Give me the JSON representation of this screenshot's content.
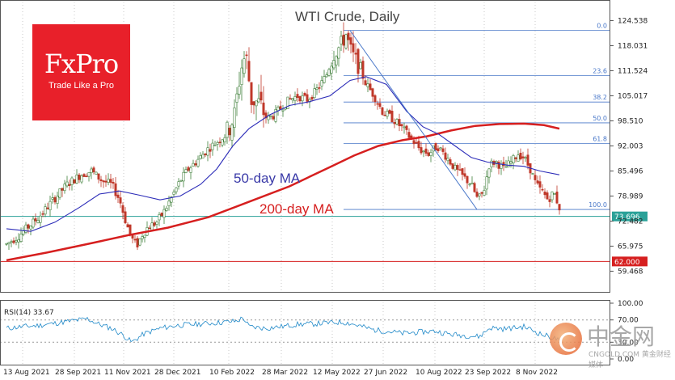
{
  "chart_data": {
    "type": "candlestick",
    "title": "WTI Crude, Daily",
    "y_ticks": [
      "124.538",
      "118.031",
      "111.524",
      "105.017",
      "98.510",
      "92.003",
      "85.496",
      "78.989",
      "72.482",
      "65.975",
      "59.468"
    ],
    "ylim": [
      56.2,
      127.8
    ],
    "x_ticks": [
      "13 Aug 2021",
      "28 Sep 2021",
      "11 Nov 2021",
      "28 Dec 2021",
      "10 Feb 2022",
      "28 Mar 2022",
      "12 May 2022",
      "27 Jun 2022",
      "10 Aug 2022",
      "23 Sep 2022",
      "8 Nov 2022"
    ],
    "price_path": [
      [
        0,
        66.5
      ],
      [
        14,
        68.5
      ],
      [
        27,
        71
      ],
      [
        40,
        73.5
      ],
      [
        58,
        78
      ],
      [
        75,
        82
      ],
      [
        92,
        84.5
      ],
      [
        105,
        85.5
      ],
      [
        118,
        83
      ],
      [
        130,
        82
      ],
      [
        140,
        78
      ],
      [
        148,
        72
      ],
      [
        155,
        68
      ],
      [
        161,
        66
      ],
      [
        168,
        69
      ],
      [
        175,
        71
      ],
      [
        185,
        72
      ],
      [
        195,
        75
      ],
      [
        205,
        79
      ],
      [
        215,
        83
      ],
      [
        225,
        86
      ],
      [
        235,
        88
      ],
      [
        248,
        91
      ],
      [
        260,
        93
      ],
      [
        272,
        95
      ],
      [
        282,
        100
      ],
      [
        290,
        112
      ],
      [
        296,
        116
      ],
      [
        303,
        104
      ],
      [
        313,
        103
      ],
      [
        322,
        99
      ],
      [
        331,
        100
      ],
      [
        340,
        102
      ],
      [
        350,
        104
      ],
      [
        360,
        105
      ],
      [
        372,
        104
      ],
      [
        382,
        106
      ],
      [
        395,
        110
      ],
      [
        405,
        116
      ],
      [
        413,
        118
      ],
      [
        420,
        121
      ],
      [
        427,
        116
      ],
      [
        435,
        113
      ],
      [
        445,
        108
      ],
      [
        455,
        105
      ],
      [
        465,
        101
      ],
      [
        478,
        99
      ],
      [
        488,
        97
      ],
      [
        500,
        94
      ],
      [
        512,
        91
      ],
      [
        522,
        90
      ],
      [
        533,
        92
      ],
      [
        545,
        89
      ],
      [
        555,
        86
      ],
      [
        565,
        84
      ],
      [
        575,
        82
      ],
      [
        583,
        78
      ],
      [
        590,
        80
      ],
      [
        597,
        87
      ],
      [
        605,
        88
      ],
      [
        615,
        86
      ],
      [
        625,
        88
      ],
      [
        633,
        90
      ],
      [
        640,
        89
      ],
      [
        648,
        86
      ],
      [
        655,
        82
      ],
      [
        663,
        80
      ],
      [
        670,
        78
      ],
      [
        677,
        80
      ],
      [
        684,
        76
      ]
    ],
    "ma50": {
      "name": "50-day MA",
      "color": "#2c2cb8",
      "points": [
        [
          0,
          70.5
        ],
        [
          30,
          69.8
        ],
        [
          60,
          72.2
        ],
        [
          90,
          76
        ],
        [
          115,
          79.5
        ],
        [
          140,
          80.3
        ],
        [
          165,
          79.2
        ],
        [
          190,
          78
        ],
        [
          215,
          79
        ],
        [
          240,
          82
        ],
        [
          260,
          86
        ],
        [
          280,
          92
        ],
        [
          300,
          96.5
        ],
        [
          325,
          100
        ],
        [
          350,
          102.5
        ],
        [
          375,
          103.5
        ],
        [
          400,
          105
        ],
        [
          425,
          109
        ],
        [
          445,
          110
        ],
        [
          470,
          108
        ],
        [
          495,
          101
        ],
        [
          515,
          97
        ],
        [
          535,
          95
        ],
        [
          555,
          92
        ],
        [
          575,
          89
        ],
        [
          595,
          87.8
        ],
        [
          620,
          87
        ],
        [
          640,
          86.7
        ],
        [
          660,
          85.5
        ],
        [
          684,
          84.5
        ]
      ]
    },
    "ma200": {
      "name": "200-day MA",
      "color": "#d61f1f",
      "points": [
        [
          0,
          62.3
        ],
        [
          50,
          64.3
        ],
        [
          100,
          66.5
        ],
        [
          150,
          68.8
        ],
        [
          200,
          70.8
        ],
        [
          250,
          73.5
        ],
        [
          300,
          77.5
        ],
        [
          350,
          81.5
        ],
        [
          400,
          86.5
        ],
        [
          430,
          89.5
        ],
        [
          460,
          92
        ],
        [
          490,
          93.5
        ],
        [
          520,
          94.5
        ],
        [
          550,
          96
        ],
        [
          580,
          97.2
        ],
        [
          610,
          97.7
        ],
        [
          640,
          97.8
        ],
        [
          665,
          97.4
        ],
        [
          684,
          96.5
        ]
      ]
    },
    "fibonacci": {
      "levels": [
        {
          "label": "0.0",
          "value": 122
        },
        {
          "label": "23.6",
          "value": 110.3
        },
        {
          "label": "38.2",
          "value": 103.4
        },
        {
          "label": "50.0",
          "value": 98
        },
        {
          "label": "61.8",
          "value": 92.6
        },
        {
          "label": "100.0",
          "value": 75.5
        }
      ]
    },
    "trend_line": {
      "from": [
        425,
        122
      ],
      "to": [
        582,
        75.5
      ]
    },
    "horizontal_lines": [
      {
        "label": "73.696",
        "value": 73.696,
        "color": "#2aa198"
      },
      {
        "label": "62.000",
        "value": 62.0,
        "color": "#d61f1f"
      }
    ],
    "rsi": {
      "label": "RSI(14) 33.67",
      "ticks": [
        "100.00",
        "70.00",
        "30.00",
        "0.00"
      ],
      "ylim": [
        0,
        100
      ],
      "path": [
        [
          0,
          55
        ],
        [
          20,
          58
        ],
        [
          40,
          60
        ],
        [
          60,
          64
        ],
        [
          80,
          68
        ],
        [
          100,
          72
        ],
        [
          115,
          62
        ],
        [
          130,
          55
        ],
        [
          145,
          42
        ],
        [
          155,
          30
        ],
        [
          170,
          45
        ],
        [
          190,
          55
        ],
        [
          210,
          60
        ],
        [
          230,
          62
        ],
        [
          250,
          64
        ],
        [
          270,
          66
        ],
        [
          285,
          68
        ],
        [
          293,
          74
        ],
        [
          300,
          58
        ],
        [
          320,
          55
        ],
        [
          340,
          58
        ],
        [
          360,
          62
        ],
        [
          380,
          63
        ],
        [
          400,
          65
        ],
        [
          415,
          66
        ],
        [
          425,
          64
        ],
        [
          440,
          58
        ],
        [
          455,
          52
        ],
        [
          470,
          50
        ],
        [
          490,
          46
        ],
        [
          510,
          48
        ],
        [
          530,
          50
        ],
        [
          550,
          44
        ],
        [
          570,
          42
        ],
        [
          585,
          40
        ],
        [
          598,
          56
        ],
        [
          615,
          54
        ],
        [
          630,
          56
        ],
        [
          640,
          58
        ],
        [
          650,
          52
        ],
        [
          662,
          44
        ],
        [
          672,
          40
        ],
        [
          684,
          33.67
        ]
      ]
    }
  },
  "annotations": {
    "ma50_label": "50-day MA",
    "ma200_label": "200-day MA"
  },
  "logo": {
    "name": "FxPro",
    "tagline": "Trade Like a Pro"
  },
  "watermark": {
    "cn": "中金网",
    "en": "CNGOLD.COM 黄金财经媒体"
  }
}
